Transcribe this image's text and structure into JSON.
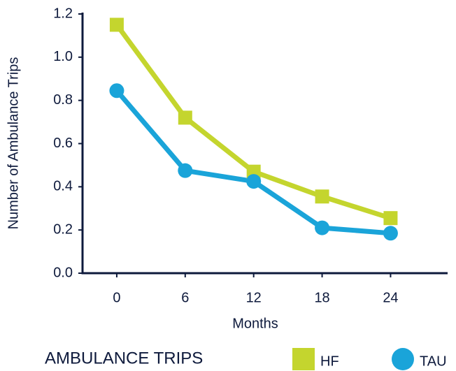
{
  "chart_data": {
    "type": "line",
    "y_label": "Number of Ambulance Trips",
    "x_label": "Months",
    "legend_title": "AMBULANCE TRIPS",
    "x": [
      0,
      6,
      12,
      18,
      24
    ],
    "xlim": [
      -3,
      29
    ],
    "xticks": [
      0,
      6,
      12,
      18,
      24
    ],
    "ylim": [
      0,
      1.2
    ],
    "yticks": [
      {
        "value": 0,
        "label": "0.0"
      },
      0.2,
      0.4,
      0.6,
      0.8,
      {
        "value": 1,
        "label": "1.0"
      },
      1.2
    ],
    "series": [
      {
        "name": "HF",
        "color": "#c4d52e",
        "marker": "square",
        "values": [
          1.15,
          0.72,
          0.47,
          0.355,
          0.255
        ]
      },
      {
        "name": "TAU",
        "color": "#1aa4d9",
        "marker": "circle",
        "values": [
          0.845,
          0.475,
          0.425,
          0.21,
          0.185
        ]
      }
    ]
  }
}
